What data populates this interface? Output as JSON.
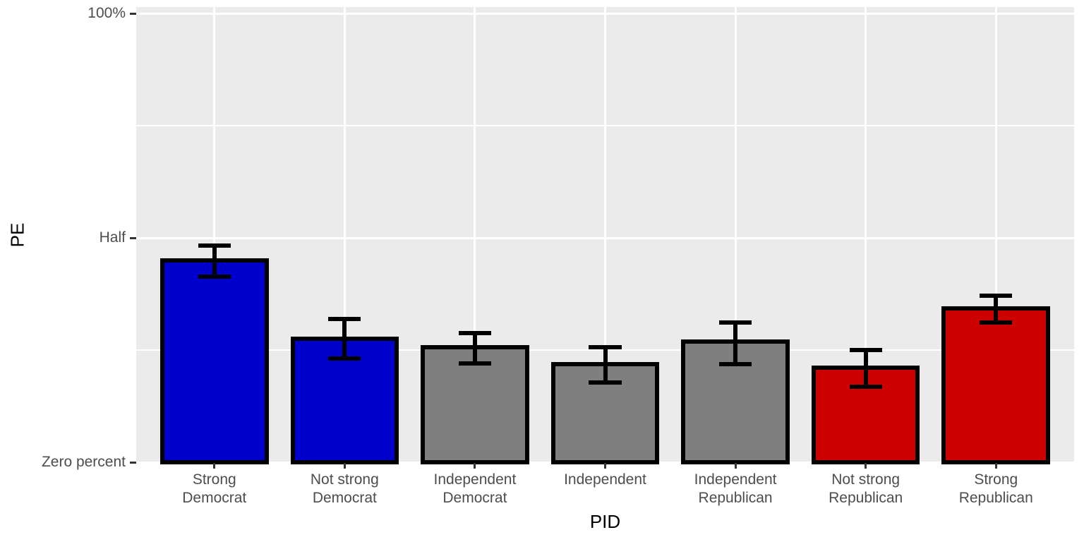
{
  "chart_data": {
    "type": "bar",
    "title": "",
    "xlabel": "PID",
    "ylabel": "PE",
    "ylim": [
      0,
      100
    ],
    "grid": "on",
    "legend": "none",
    "panel_bg": "#EBEBEB",
    "grid_color": "#FFFFFF",
    "axis_text_color": "#4D4D4D",
    "axis_title_color": "#000000",
    "bar_outline_color": "#000000",
    "errorbar_color": "#000000",
    "yticks": [
      {
        "value": 0,
        "label": "Zero percent"
      },
      {
        "value": 50,
        "label": "Half"
      },
      {
        "value": 100,
        "label": "100%"
      }
    ],
    "minor_gridlines": [
      25,
      75
    ],
    "categories": [
      "Strong\nDemocrat",
      "Not strong\nDemocrat",
      "Independent\nDemocrat",
      "Independent",
      "Independent\nRepublican",
      "Not strong\nRepublican",
      "Strong\nRepublican"
    ],
    "bars": [
      {
        "category": "Strong Democrat",
        "value": 45.0,
        "ci_low": 41.3,
        "ci_high": 48.3,
        "fill": "#0000CD"
      },
      {
        "category": "Not strong Democrat",
        "value": 27.5,
        "ci_low": 23.1,
        "ci_high": 31.9,
        "fill": "#0000CD"
      },
      {
        "category": "Independent Democrat",
        "value": 25.6,
        "ci_low": 22.0,
        "ci_high": 28.8,
        "fill": "#7F7F7F"
      },
      {
        "category": "Independent",
        "value": 21.9,
        "ci_low": 17.8,
        "ci_high": 25.6,
        "fill": "#7F7F7F"
      },
      {
        "category": "Independent Republican",
        "value": 26.9,
        "ci_low": 21.9,
        "ci_high": 31.1,
        "fill": "#7F7F7F"
      },
      {
        "category": "Not strong Republican",
        "value": 21.1,
        "ci_low": 16.8,
        "ci_high": 25.0,
        "fill": "#CD0000"
      },
      {
        "category": "Strong Republican",
        "value": 34.3,
        "ci_low": 31.1,
        "ci_high": 37.1,
        "fill": "#CD0000"
      }
    ]
  }
}
